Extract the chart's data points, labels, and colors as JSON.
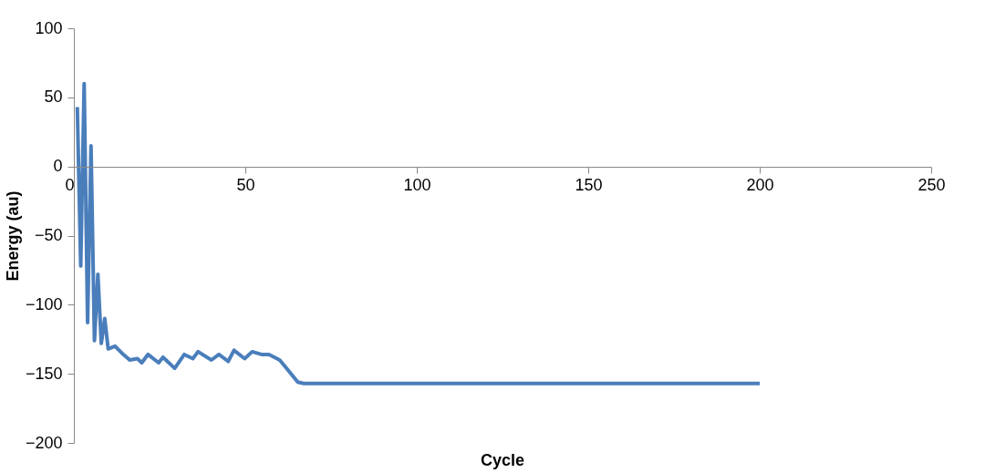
{
  "chart_data": {
    "type": "line",
    "xlabel": "Cycle",
    "ylabel": "Energy (au)",
    "x": [
      1,
      2,
      3,
      4,
      5,
      6,
      7,
      8,
      9,
      10,
      12,
      14,
      16.3,
      18.5,
      19.8,
      21.6,
      24.7,
      26,
      29.4,
      32.2,
      34.7,
      36.2,
      40.1,
      42.3,
      45,
      46.7,
      49.8,
      52,
      54.7,
      56.9,
      60,
      62,
      65.3,
      67,
      100,
      150,
      200
    ],
    "series": [
      {
        "color": "#4a7ebb",
        "values": [
          43,
          -72,
          60,
          -113,
          15,
          -126,
          -78,
          -128,
          -110,
          -132,
          -130,
          -135,
          -140,
          -139,
          -142,
          -136,
          -142,
          -138,
          -146,
          -136,
          -139,
          -134,
          -140,
          -136,
          -141,
          -133,
          -139,
          -134,
          -136,
          -136,
          -140,
          -146,
          -156,
          -157,
          -157,
          -157,
          -157
        ]
      }
    ],
    "xlim": [
      0,
      250
    ],
    "xticks": [
      0,
      50,
      100,
      150,
      200,
      250
    ],
    "ylim": [
      -200,
      100
    ],
    "yticks": [
      -200,
      -150,
      -100,
      -50,
      0,
      50,
      100
    ],
    "grid": false,
    "legend": false,
    "marker": "none",
    "line_style": "solid"
  }
}
